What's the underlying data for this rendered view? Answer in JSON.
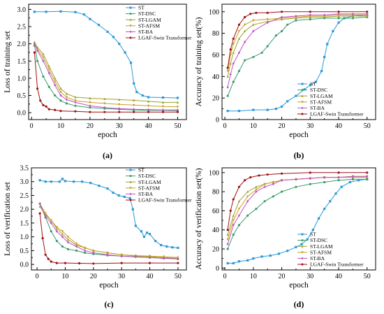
{
  "colors": {
    "ST": "#2a98d8",
    "ST-DSC": "#3a9c6a",
    "ST-LGAM": "#a0a030",
    "ST-AFSM": "#c8a020",
    "ST-BA": "#c050c0",
    "LGAF-Swin Transformer": "#a01010"
  },
  "chart_data": [
    {
      "type": "line",
      "panel": "(a)",
      "xlabel": "epoch",
      "ylabel": "Loss of training set",
      "xlim": [
        -1,
        53
      ],
      "ylim": [
        -0.2,
        3.15
      ],
      "xticks": [
        0,
        10,
        20,
        30,
        40,
        50
      ],
      "yticks": [
        0.0,
        0.5,
        1.0,
        1.5,
        2.0,
        2.5,
        3.0
      ],
      "ytick_labels": [
        "0.0",
        "0.5",
        "1.0",
        "1.5",
        "2.0",
        "2.5",
        "3.0"
      ],
      "legend": "top-right",
      "series": [
        {
          "name": "ST",
          "x": [
            1,
            5,
            10,
            15,
            18,
            20,
            23,
            26,
            28,
            30,
            32,
            34,
            35,
            36,
            38,
            40,
            45,
            50
          ],
          "values": [
            2.93,
            2.93,
            2.94,
            2.92,
            2.85,
            2.72,
            2.55,
            2.35,
            2.2,
            2.0,
            1.75,
            1.45,
            0.85,
            0.6,
            0.5,
            0.45,
            0.44,
            0.43
          ]
        },
        {
          "name": "ST-DSC",
          "x": [
            1,
            2,
            4,
            6,
            8,
            10,
            12,
            15,
            20,
            25,
            30,
            35,
            40,
            45,
            50
          ],
          "values": [
            1.95,
            1.5,
            1.05,
            0.75,
            0.5,
            0.35,
            0.27,
            0.2,
            0.15,
            0.12,
            0.1,
            0.08,
            0.07,
            0.07,
            0.06
          ]
        },
        {
          "name": "ST-LGAM",
          "x": [
            1,
            2,
            4,
            6,
            8,
            10,
            12,
            15,
            20,
            25,
            30,
            35,
            40,
            45,
            50
          ],
          "values": [
            2.05,
            1.9,
            1.7,
            1.35,
            1.0,
            0.7,
            0.55,
            0.45,
            0.42,
            0.4,
            0.38,
            0.36,
            0.33,
            0.3,
            0.3
          ]
        },
        {
          "name": "ST-AFSM",
          "x": [
            1,
            2,
            4,
            6,
            8,
            10,
            12,
            15,
            20,
            25,
            30,
            35,
            40,
            45,
            50
          ],
          "values": [
            2.0,
            1.85,
            1.6,
            1.25,
            0.9,
            0.6,
            0.45,
            0.35,
            0.3,
            0.27,
            0.24,
            0.22,
            0.2,
            0.18,
            0.17
          ]
        },
        {
          "name": "ST-BA",
          "x": [
            1,
            2,
            4,
            6,
            8,
            10,
            12,
            15,
            20,
            25,
            30,
            35,
            40,
            45,
            50
          ],
          "values": [
            2.0,
            1.8,
            1.5,
            1.15,
            0.8,
            0.5,
            0.38,
            0.3,
            0.2,
            0.15,
            0.12,
            0.1,
            0.09,
            0.08,
            0.08
          ]
        },
        {
          "name": "LGAF-Swin Transformer",
          "x": [
            1,
            2,
            3,
            4,
            5,
            6,
            8,
            10,
            15,
            20,
            25,
            30,
            35,
            40,
            45,
            50
          ],
          "values": [
            1.75,
            0.7,
            0.35,
            0.22,
            0.18,
            0.1,
            0.08,
            0.05,
            0.04,
            0.02,
            0.02,
            0.02,
            0.02,
            0.02,
            0.02,
            0.02
          ]
        }
      ]
    },
    {
      "type": "line",
      "panel": "(b)",
      "xlabel": "epoch",
      "ylabel": "Accuracy of training set(%)",
      "xlim": [
        -1,
        53
      ],
      "ylim": [
        0,
        107
      ],
      "xticks": [
        0,
        10,
        20,
        30,
        40,
        50
      ],
      "yticks": [
        0,
        20,
        40,
        60,
        80,
        100
      ],
      "ytick_labels": [
        "0",
        "20",
        "40",
        "60",
        "80",
        "100"
      ],
      "legend": "bottom-right",
      "series": [
        {
          "name": "ST",
          "x": [
            1,
            5,
            10,
            15,
            18,
            20,
            22,
            25,
            28,
            30,
            32,
            34,
            35,
            36,
            38,
            40,
            42,
            45,
            50
          ],
          "values": [
            8,
            8,
            9,
            9,
            10,
            12,
            17,
            22,
            28,
            32,
            35,
            45,
            58,
            70,
            82,
            90,
            94,
            96,
            97
          ]
        },
        {
          "name": "ST-DSC",
          "x": [
            1,
            3,
            5,
            7,
            10,
            13,
            15,
            18,
            20,
            22,
            25,
            30,
            35,
            40,
            45,
            50
          ],
          "values": [
            22,
            35,
            45,
            55,
            58,
            62,
            68,
            78,
            82,
            88,
            92,
            93,
            94,
            94,
            94,
            95
          ]
        },
        {
          "name": "ST-LGAM",
          "x": [
            1,
            2,
            3,
            5,
            7,
            10,
            15,
            20,
            25,
            30,
            35,
            40,
            45,
            50
          ],
          "values": [
            40,
            52,
            62,
            75,
            82,
            88,
            91,
            93,
            94,
            95,
            95,
            96,
            96,
            96
          ]
        },
        {
          "name": "ST-AFSM",
          "x": [
            1,
            2,
            3,
            5,
            7,
            10,
            15,
            20,
            25,
            30,
            35,
            40,
            45,
            50
          ],
          "values": [
            45,
            60,
            70,
            82,
            88,
            92,
            93,
            94,
            95,
            96,
            96,
            97,
            97,
            97
          ]
        },
        {
          "name": "ST-BA",
          "x": [
            1,
            2,
            3,
            5,
            7,
            10,
            15,
            20,
            25,
            30,
            35,
            40,
            45,
            50
          ],
          "values": [
            30,
            42,
            52,
            62,
            72,
            82,
            90,
            95,
            96,
            97,
            97,
            98,
            98,
            98
          ]
        },
        {
          "name": "LGAF-Swin Transformer",
          "x": [
            1,
            2,
            3,
            5,
            7,
            9,
            11,
            15,
            20,
            30,
            40,
            50
          ],
          "values": [
            48,
            65,
            75,
            88,
            95,
            98,
            99,
            99,
            100,
            100,
            100,
            100
          ]
        }
      ]
    },
    {
      "type": "line",
      "panel": "(c)",
      "xlabel": "epoch",
      "ylabel": "Loss of verification set",
      "xlim": [
        -2,
        53
      ],
      "ylim": [
        -0.2,
        3.5
      ],
      "xticks": [
        0,
        10,
        20,
        30,
        40,
        50
      ],
      "yticks": [
        0.0,
        0.5,
        1.0,
        1.5,
        2.0,
        2.5,
        3.0,
        3.5
      ],
      "ytick_labels": [
        "0.0",
        "0.5",
        "1.0",
        "1.5",
        "2.0",
        "2.5",
        "3.0",
        "3.5"
      ],
      "legend": "top-right",
      "series": [
        {
          "name": "ST",
          "x": [
            1,
            3,
            5,
            8,
            9,
            10,
            13,
            16,
            19,
            22,
            25,
            27,
            29,
            31,
            33,
            34,
            35,
            37,
            38,
            39,
            40,
            42,
            44,
            46,
            48,
            50
          ],
          "values": [
            3.05,
            3.0,
            3.0,
            3.0,
            3.1,
            3.02,
            3.0,
            3.0,
            2.95,
            2.85,
            2.75,
            2.6,
            2.5,
            2.45,
            2.4,
            2.0,
            1.4,
            1.2,
            1.0,
            1.15,
            1.1,
            0.85,
            0.7,
            0.65,
            0.62,
            0.6
          ]
        },
        {
          "name": "ST-DSC",
          "x": [
            1,
            3,
            5,
            7,
            9,
            11,
            14,
            17,
            20,
            25,
            30,
            35,
            40,
            45,
            50
          ],
          "values": [
            2.2,
            1.7,
            1.2,
            0.85,
            0.65,
            0.55,
            0.5,
            0.42,
            0.38,
            0.33,
            0.3,
            0.28,
            0.25,
            0.22,
            0.2
          ]
        },
        {
          "name": "ST-LGAM",
          "x": [
            1,
            3,
            5,
            7,
            9,
            11,
            14,
            17,
            20,
            25,
            30,
            35,
            40,
            45,
            50
          ],
          "values": [
            2.1,
            1.8,
            1.6,
            1.3,
            1.1,
            0.9,
            0.7,
            0.6,
            0.5,
            0.42,
            0.35,
            0.3,
            0.28,
            0.25,
            0.22
          ]
        },
        {
          "name": "ST-AFSM",
          "x": [
            1,
            3,
            5,
            7,
            9,
            11,
            14,
            17,
            20,
            25,
            30,
            35,
            40,
            45,
            50
          ],
          "values": [
            2.2,
            1.85,
            1.6,
            1.35,
            1.2,
            1.0,
            0.75,
            0.6,
            0.5,
            0.42,
            0.35,
            0.32,
            0.3,
            0.28,
            0.25
          ]
        },
        {
          "name": "ST-BA",
          "x": [
            1,
            3,
            5,
            7,
            9,
            11,
            14,
            17,
            20,
            25,
            30,
            35,
            40,
            45,
            50
          ],
          "values": [
            2.2,
            1.75,
            1.5,
            1.2,
            1.0,
            0.8,
            0.65,
            0.5,
            0.42,
            0.35,
            0.3,
            0.27,
            0.25,
            0.22,
            0.2
          ]
        },
        {
          "name": "LGAF-Swin Transformer",
          "x": [
            1,
            2,
            3,
            4,
            5,
            7,
            10,
            15,
            20,
            30,
            40,
            50
          ],
          "values": [
            1.85,
            0.95,
            0.35,
            0.2,
            0.1,
            0.05,
            0.05,
            0.04,
            0.03,
            0.05,
            0.05,
            0.05
          ]
        }
      ]
    },
    {
      "type": "line",
      "panel": "(d)",
      "xlabel": "epoch",
      "ylabel": "Accuracy of verification set(%)",
      "xlim": [
        -1,
        53
      ],
      "ylim": [
        -2,
        105
      ],
      "xticks": [
        0,
        10,
        20,
        30,
        40,
        50
      ],
      "yticks": [
        0,
        20,
        40,
        60,
        80,
        100
      ],
      "ytick_labels": [
        "0",
        "20",
        "40",
        "60",
        "80",
        "100"
      ],
      "legend": "bottom-right",
      "series": [
        {
          "name": "ST",
          "x": [
            1,
            3,
            5,
            8,
            10,
            13,
            16,
            19,
            22,
            25,
            27,
            29,
            31,
            33,
            35,
            37,
            39,
            41,
            44,
            47,
            50
          ],
          "values": [
            5,
            5,
            7,
            8,
            10,
            12,
            13,
            15,
            18,
            22,
            25,
            30,
            40,
            52,
            62,
            70,
            78,
            85,
            90,
            92,
            93
          ]
        },
        {
          "name": "ST-DSC",
          "x": [
            1,
            3,
            5,
            8,
            11,
            14,
            17,
            20,
            25,
            30,
            35,
            40,
            45,
            50
          ],
          "values": [
            20,
            35,
            45,
            55,
            62,
            70,
            75,
            80,
            85,
            88,
            90,
            92,
            93,
            93
          ]
        },
        {
          "name": "ST-LGAM",
          "x": [
            1,
            3,
            5,
            8,
            11,
            14,
            17,
            20,
            25,
            30,
            35,
            40,
            45,
            50
          ],
          "values": [
            35,
            55,
            70,
            80,
            85,
            88,
            90,
            92,
            93,
            94,
            95,
            95,
            95,
            95
          ]
        },
        {
          "name": "ST-AFSM",
          "x": [
            1,
            3,
            5,
            8,
            11,
            14,
            17,
            20,
            25,
            30,
            35,
            40,
            45,
            50
          ],
          "values": [
            30,
            50,
            62,
            75,
            82,
            88,
            90,
            92,
            93,
            94,
            95,
            95,
            96,
            96
          ]
        },
        {
          "name": "ST-BA",
          "x": [
            1,
            3,
            5,
            8,
            11,
            14,
            17,
            20,
            25,
            30,
            35,
            40,
            45,
            50
          ],
          "values": [
            25,
            45,
            55,
            70,
            80,
            85,
            88,
            92,
            93,
            94,
            95,
            95,
            96,
            96
          ]
        },
        {
          "name": "LGAF-Swin Transformer",
          "x": [
            1,
            2,
            3,
            5,
            7,
            9,
            12,
            15,
            20,
            30,
            40,
            50
          ],
          "values": [
            40,
            60,
            72,
            85,
            92,
            95,
            97,
            98,
            99,
            100,
            100,
            100
          ]
        }
      ]
    }
  ]
}
